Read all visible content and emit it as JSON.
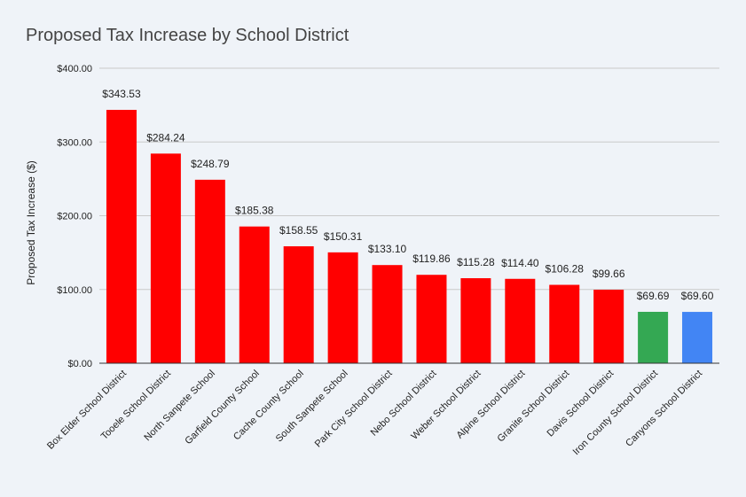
{
  "chart_data": {
    "type": "bar",
    "title": "Proposed Tax Increase by School District",
    "ylabel": "Proposed Tax Increase ($)",
    "xlabel": "",
    "ylim": [
      0,
      400
    ],
    "y_ticks": [
      {
        "value": 0,
        "label": "$0.00"
      },
      {
        "value": 100,
        "label": "$100.00"
      },
      {
        "value": 200,
        "label": "$200.00"
      },
      {
        "value": 300,
        "label": "$300.00"
      },
      {
        "value": 400,
        "label": "$400.00"
      }
    ],
    "grid": true,
    "legend": "none",
    "categories": [
      "Box Elder School District",
      "Tooele School District",
      "North Sanpete School",
      "Garfield County School",
      "Cache County School",
      "South Sanpete School",
      "Park City School District",
      "Nebo School District",
      "Weber School District",
      "Alpine School District",
      "Granite School District",
      "Davis School District",
      "Iron County School District",
      "Canyons School District"
    ],
    "values": [
      343.53,
      284.24,
      248.79,
      185.38,
      158.55,
      150.31,
      133.1,
      119.86,
      115.28,
      114.4,
      106.28,
      99.66,
      69.69,
      69.6
    ],
    "data_labels": [
      "$343.53",
      "$284.24",
      "$248.79",
      "$185.38",
      "$158.55",
      "$150.31",
      "$133.10",
      "$119.86",
      "$115.28",
      "$114.40",
      "$106.28",
      "$99.66",
      "$69.69",
      "$69.60"
    ],
    "colors": [
      "#ff0000",
      "#ff0000",
      "#ff0000",
      "#ff0000",
      "#ff0000",
      "#ff0000",
      "#ff0000",
      "#ff0000",
      "#ff0000",
      "#ff0000",
      "#ff0000",
      "#ff0000",
      "#34a853",
      "#4285f4"
    ],
    "grid_color": "#c9c9c9",
    "axis_color": "#333333"
  }
}
